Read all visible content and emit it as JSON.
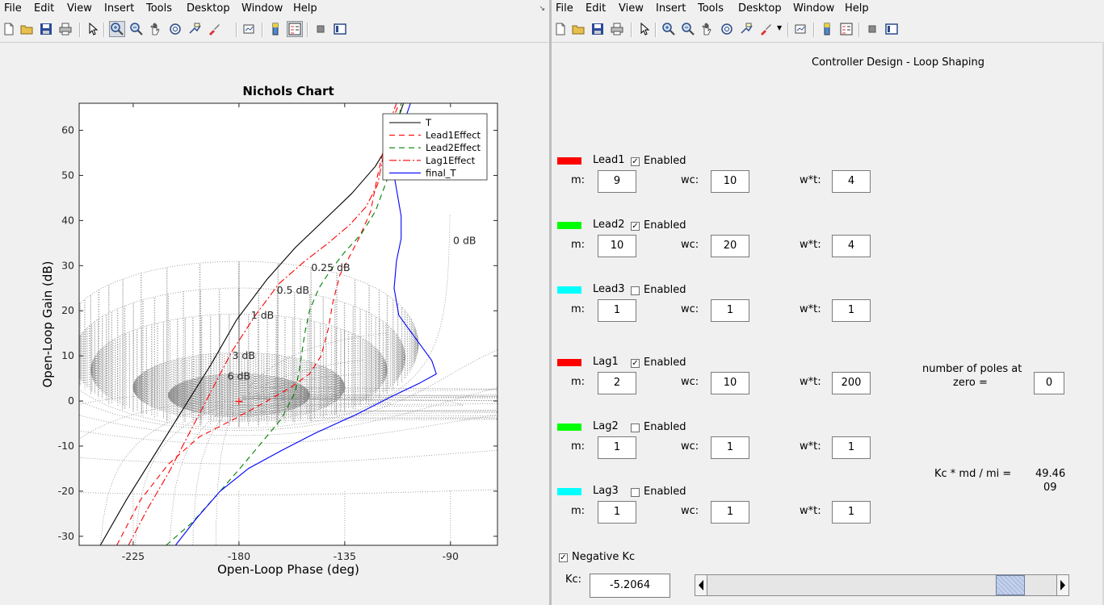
{
  "menu": [
    "File",
    "Edit",
    "View",
    "Insert",
    "Tools",
    "Desktop",
    "Window",
    "Help"
  ],
  "chart_data": {
    "type": "line",
    "title": "Nichols Chart",
    "xlabel": "Open-Loop Phase (deg)",
    "ylabel": "Open-Loop Gain (dB)",
    "xlim": [
      -248,
      -70
    ],
    "ylim": [
      -32,
      66
    ],
    "xticks": [
      -225,
      -180,
      -135,
      -90
    ],
    "yticks": [
      -30,
      -20,
      -10,
      0,
      10,
      20,
      30,
      40,
      50,
      60
    ],
    "grid_labels": [
      "0 dB",
      "0.25 dB",
      "0.5 dB",
      "1 dB",
      "3 dB",
      "6 dB"
    ],
    "legend_position": "top-right",
    "series": [
      {
        "name": "T",
        "color": "#000000",
        "dash": "",
        "points": [
          [
            -239,
            -32
          ],
          [
            -228,
            -22
          ],
          [
            -216,
            -12
          ],
          [
            -204,
            -2
          ],
          [
            -192,
            8
          ],
          [
            -181,
            18
          ],
          [
            -168,
            27
          ],
          [
            -156,
            34
          ],
          [
            -144,
            40
          ],
          [
            -132,
            46
          ],
          [
            -122,
            52
          ],
          [
            -115,
            58
          ],
          [
            -112,
            63
          ],
          [
            -110,
            66
          ]
        ]
      },
      {
        "name": "Lead1Effect",
        "color": "#ff0000",
        "dash": "7,5",
        "points": [
          [
            -232,
            -32
          ],
          [
            -222,
            -22
          ],
          [
            -210,
            -14
          ],
          [
            -197,
            -8
          ],
          [
            -182,
            -4
          ],
          [
            -168,
            0
          ],
          [
            -158,
            3
          ],
          [
            -150,
            6
          ],
          [
            -145,
            10
          ],
          [
            -142,
            16
          ],
          [
            -140,
            22
          ],
          [
            -137,
            28
          ],
          [
            -133,
            32
          ],
          [
            -129,
            36
          ],
          [
            -124,
            42
          ],
          [
            -121,
            50
          ],
          [
            -118,
            57
          ],
          [
            -114,
            63
          ],
          [
            -112,
            66
          ]
        ]
      },
      {
        "name": "Lead2Effect",
        "color": "#008000",
        "dash": "7,5",
        "points": [
          [
            -211,
            -32
          ],
          [
            -200,
            -27
          ],
          [
            -188,
            -20
          ],
          [
            -178,
            -14
          ],
          [
            -170,
            -9
          ],
          [
            -162,
            -4
          ],
          [
            -156,
            2
          ],
          [
            -154,
            8
          ],
          [
            -152,
            15
          ],
          [
            -150,
            20
          ],
          [
            -146,
            25
          ],
          [
            -141,
            29
          ],
          [
            -135,
            33
          ],
          [
            -128,
            37
          ],
          [
            -122,
            42
          ],
          [
            -117,
            49
          ],
          [
            -114,
            56
          ],
          [
            -112,
            62
          ],
          [
            -111,
            66
          ]
        ]
      },
      {
        "name": "Lag1Effect",
        "color": "#ff0000",
        "dash": "9,3,2,3",
        "points": [
          [
            -227,
            -32
          ],
          [
            -219,
            -24
          ],
          [
            -210,
            -16
          ],
          [
            -201,
            -7
          ],
          [
            -192,
            2
          ],
          [
            -183,
            11
          ],
          [
            -173,
            19
          ],
          [
            -163,
            26
          ],
          [
            -152,
            31
          ],
          [
            -142,
            35
          ],
          [
            -133,
            39
          ],
          [
            -126,
            43
          ],
          [
            -121,
            48
          ],
          [
            -118,
            56
          ],
          [
            -115,
            63
          ],
          [
            -113,
            66
          ]
        ]
      },
      {
        "name": "final_T",
        "color": "#0000ff",
        "dash": "",
        "points": [
          [
            -207,
            -32
          ],
          [
            -198,
            -26
          ],
          [
            -188,
            -20
          ],
          [
            -176,
            -15
          ],
          [
            -162,
            -11
          ],
          [
            -147,
            -7
          ],
          [
            -130,
            -3
          ],
          [
            -115,
            1
          ],
          [
            -103,
            4
          ],
          [
            -96,
            6
          ],
          [
            -98,
            9
          ],
          [
            -105,
            14
          ],
          [
            -112,
            19
          ],
          [
            -114,
            25
          ],
          [
            -113,
            31
          ],
          [
            -111,
            36
          ],
          [
            -111,
            41
          ],
          [
            -113,
            47
          ],
          [
            -115,
            53
          ],
          [
            -112,
            58
          ],
          [
            -109,
            63
          ],
          [
            -107,
            66
          ]
        ]
      }
    ]
  },
  "marker": {
    "x": -180,
    "y": 0,
    "glyph": "+"
  },
  "panel": {
    "title": "Controller Design - Loop Shaping",
    "m_label": "m:",
    "wc_label": "wc:",
    "wt_label": "w*t:",
    "enabled_label": "Enabled",
    "filters": [
      {
        "name": "Lead1",
        "color": "#ff0000",
        "enabled": true,
        "m": "9",
        "wc": "10",
        "wt": "4"
      },
      {
        "name": "Lead2",
        "color": "#00ff00",
        "enabled": true,
        "m": "10",
        "wc": "20",
        "wt": "4"
      },
      {
        "name": "Lead3",
        "color": "#00ffff",
        "enabled": false,
        "m": "1",
        "wc": "1",
        "wt": "1"
      },
      {
        "name": "Lag1",
        "color": "#ff0000",
        "enabled": true,
        "m": "2",
        "wc": "10",
        "wt": "200"
      },
      {
        "name": "Lag2",
        "color": "#00ff00",
        "enabled": false,
        "m": "1",
        "wc": "1",
        "wt": "1"
      },
      {
        "name": "Lag3",
        "color": "#00ffff",
        "enabled": false,
        "m": "1",
        "wc": "1",
        "wt": "1"
      }
    ],
    "poles_label_1": "number of poles at",
    "poles_label_2": "zero =",
    "poles_value": "0",
    "kc_ratio_label": "Kc * md / mi =",
    "kc_ratio_value_1": "49.46",
    "kc_ratio_value_2": "09",
    "negative_kc_label": "Negative Kc",
    "negative_kc_checked": true,
    "kc_label": "Kc:",
    "kc_value": "-5.2064",
    "kc_slider_fraction": 0.9
  }
}
